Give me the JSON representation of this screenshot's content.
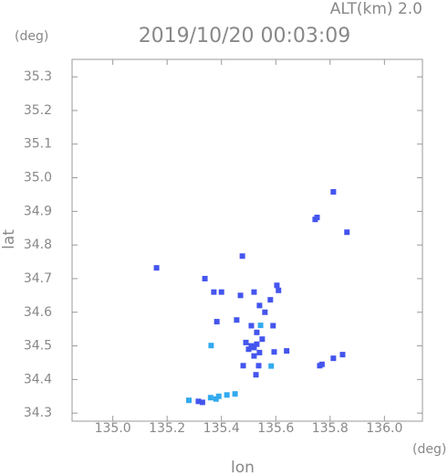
{
  "chart_data": {
    "type": "scatter",
    "title": "2019/10/20 00:03:09",
    "subtitle": "ALT(km) 2.0",
    "x_label": "lon",
    "y_label": "lat",
    "x_unit": "(deg)",
    "y_unit": "(deg)",
    "xlim": [
      134.85,
      136.14
    ],
    "ylim": [
      34.276,
      35.352
    ],
    "xticks": [
      {
        "value": 135,
        "label": "135.0"
      },
      135.2,
      135.4,
      135.6,
      135.8,
      {
        "value": 136,
        "label": "136.0"
      }
    ],
    "yticks": [
      34.3,
      34.4,
      34.5,
      34.6,
      34.7,
      34.8,
      34.9,
      {
        "value": 35,
        "label": "35.0"
      },
      35.1,
      35.2,
      35.3
    ],
    "series": [
      {
        "color": "#4455ee",
        "x": [
          135.161,
          135.812,
          135.745,
          135.752,
          135.862,
          135.477,
          135.339,
          135.372,
          135.4,
          135.456,
          135.383,
          135.604,
          135.61,
          135.58,
          135.51,
          135.52,
          135.53,
          135.5,
          135.54,
          135.52,
          135.49,
          135.55,
          135.53,
          135.51,
          135.56,
          135.54,
          135.59,
          135.594,
          135.537,
          135.527,
          135.48,
          135.762,
          135.77,
          135.812,
          135.846,
          135.315,
          135.33,
          135.52,
          135.47,
          135.64
        ],
        "values": [
          34.732,
          34.958,
          34.876,
          34.882,
          34.838,
          34.767,
          34.7,
          34.66,
          34.66,
          34.577,
          34.572,
          34.68,
          34.665,
          34.637,
          34.5,
          34.495,
          34.505,
          34.49,
          34.48,
          34.47,
          34.51,
          34.52,
          34.54,
          34.56,
          34.6,
          34.62,
          34.56,
          34.482,
          34.441,
          34.414,
          34.441,
          34.441,
          34.445,
          34.463,
          34.474,
          34.335,
          34.332,
          34.66,
          34.65,
          34.485
        ]
      },
      {
        "color": "#33aaee",
        "x": [
          135.362,
          135.544,
          135.36,
          135.39,
          135.42,
          135.45,
          135.38,
          135.28,
          135.583
        ],
        "values": [
          34.501,
          34.561,
          34.346,
          34.35,
          34.354,
          34.357,
          34.342,
          34.338,
          34.44
        ]
      }
    ]
  }
}
